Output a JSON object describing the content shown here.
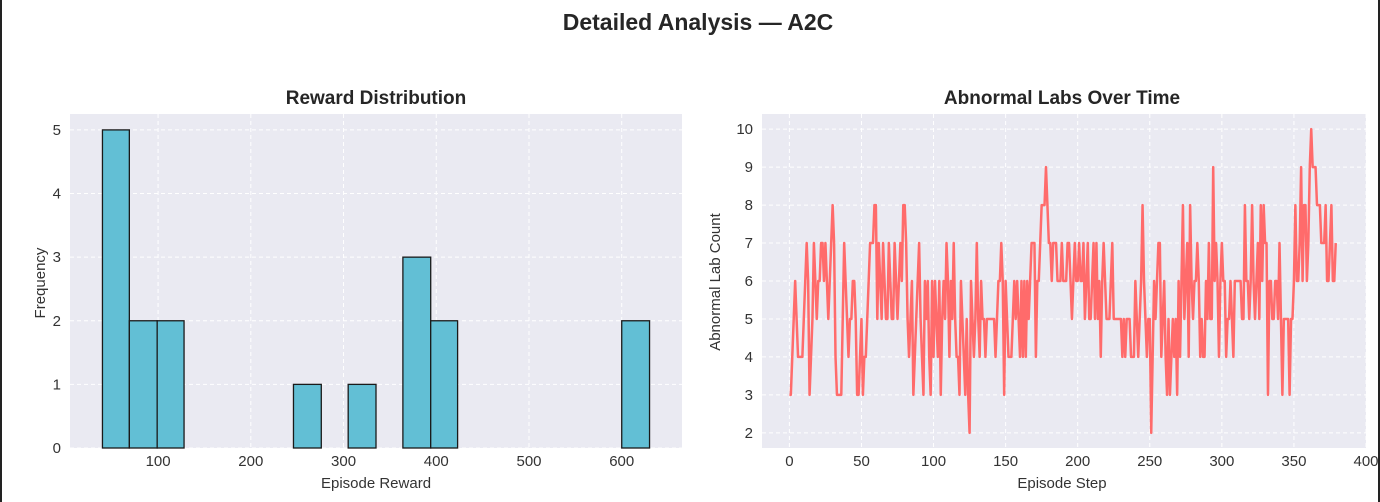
{
  "figure": {
    "title": "Detailed Analysis — A2C"
  },
  "colors": {
    "panel_background": "#eaeaf2",
    "grid": "#ffffff",
    "histogram_fill": "#62bfd5",
    "histogram_edge": "#1a1a1a",
    "line": "#ff6b6b"
  },
  "chart_data": [
    {
      "type": "bar",
      "subtype": "histogram",
      "title": "Reward Distribution",
      "xlabel": "Episode Reward",
      "ylabel": "Frequency",
      "xlim": [
        5,
        665
      ],
      "ylim": [
        0,
        5.25
      ],
      "xticks": [
        100,
        200,
        300,
        400,
        500,
        600
      ],
      "yticks": [
        0,
        1,
        2,
        3,
        4,
        5
      ],
      "grid": true,
      "bins": [
        {
          "x0": 40,
          "x1": 69,
          "count": 5
        },
        {
          "x0": 69,
          "x1": 99,
          "count": 2
        },
        {
          "x0": 99,
          "x1": 128,
          "count": 2
        },
        {
          "x0": 128,
          "x1": 158,
          "count": 0
        },
        {
          "x0": 158,
          "x1": 187,
          "count": 0
        },
        {
          "x0": 187,
          "x1": 217,
          "count": 0
        },
        {
          "x0": 217,
          "x1": 246,
          "count": 0
        },
        {
          "x0": 246,
          "x1": 276,
          "count": 1
        },
        {
          "x0": 276,
          "x1": 305,
          "count": 0
        },
        {
          "x0": 305,
          "x1": 335,
          "count": 1
        },
        {
          "x0": 335,
          "x1": 364,
          "count": 0
        },
        {
          "x0": 364,
          "x1": 394,
          "count": 3
        },
        {
          "x0": 394,
          "x1": 423,
          "count": 2
        },
        {
          "x0": 423,
          "x1": 453,
          "count": 0
        },
        {
          "x0": 453,
          "x1": 482,
          "count": 0
        },
        {
          "x0": 482,
          "x1": 512,
          "count": 0
        },
        {
          "x0": 512,
          "x1": 541,
          "count": 0
        },
        {
          "x0": 541,
          "x1": 571,
          "count": 0
        },
        {
          "x0": 571,
          "x1": 600,
          "count": 0
        },
        {
          "x0": 600,
          "x1": 630,
          "count": 2
        }
      ]
    },
    {
      "type": "line",
      "title": "Abnormal Labs Over Time",
      "xlabel": "Episode Step",
      "ylabel": "Abnormal Lab Count",
      "xlim": [
        -19,
        400
      ],
      "ylim": [
        1.6,
        10.4
      ],
      "xticks": [
        0,
        50,
        100,
        150,
        200,
        250,
        300,
        350,
        400
      ],
      "yticks": [
        2,
        3,
        4,
        5,
        6,
        7,
        8,
        9,
        10
      ],
      "grid": true,
      "series": [
        {
          "values": [
            3,
            3,
            4,
            5,
            6,
            5,
            4,
            4,
            4,
            4,
            5,
            6,
            7,
            6,
            3,
            4,
            5,
            7,
            6,
            5,
            6,
            6,
            7,
            7,
            6,
            7,
            6,
            5,
            6,
            7,
            8,
            7,
            4,
            3,
            3,
            3,
            3,
            5,
            7,
            6,
            5,
            4,
            5,
            5,
            6,
            6,
            5,
            3,
            3,
            4,
            5,
            3,
            4,
            4,
            5,
            6,
            7,
            7,
            7,
            8,
            8,
            5,
            7,
            6,
            5,
            7,
            6,
            5,
            5,
            7,
            6,
            5,
            5,
            7,
            6,
            5,
            6,
            7,
            6,
            8,
            8,
            7,
            5,
            4,
            5,
            6,
            3,
            4,
            5,
            6,
            7,
            5,
            4,
            3,
            6,
            5,
            6,
            4,
            3,
            6,
            4,
            6,
            5,
            4,
            6,
            3,
            5,
            6,
            5,
            7,
            6,
            4,
            6,
            5,
            7,
            5,
            4,
            4,
            3,
            6,
            5,
            4,
            3,
            5,
            3,
            2,
            6,
            5,
            4,
            5,
            7,
            5,
            4,
            6,
            5,
            5,
            4,
            5,
            5,
            5,
            5,
            5,
            5,
            4,
            5,
            6,
            6,
            7,
            6,
            3,
            6,
            5,
            4,
            4,
            4,
            5,
            6,
            5,
            6,
            5,
            4,
            6,
            4,
            6,
            4,
            6,
            5,
            6,
            7,
            7,
            7,
            4,
            6,
            6,
            7,
            8,
            8,
            8,
            9,
            8,
            7,
            7,
            6,
            7,
            7,
            7,
            6,
            6,
            6,
            7,
            6,
            6,
            6,
            7,
            7,
            6,
            5,
            6,
            7,
            6,
            6,
            7,
            6,
            6,
            7,
            5,
            6,
            7,
            5,
            5,
            6,
            7,
            5,
            7,
            5,
            6,
            4,
            6,
            7,
            6,
            5,
            5,
            5,
            6,
            7,
            5,
            5,
            5,
            5,
            5,
            5,
            4,
            5,
            4,
            5,
            5,
            5,
            4,
            4,
            4,
            6,
            5,
            4,
            5,
            6,
            8,
            6,
            5,
            4,
            5,
            5,
            2,
            4,
            6,
            5,
            6,
            7,
            7,
            4,
            5,
            6,
            4,
            3,
            5,
            3,
            4,
            5,
            4,
            5,
            3,
            6,
            4,
            6,
            8,
            5,
            6,
            7,
            4,
            8,
            6,
            5,
            6,
            6,
            7,
            6,
            4,
            5,
            4,
            4,
            6,
            5,
            7,
            5,
            5,
            9,
            6,
            7,
            6,
            4,
            6,
            7,
            6,
            6,
            4,
            5,
            5,
            6,
            5,
            4,
            6,
            6,
            6,
            6,
            6,
            5,
            5,
            8,
            6,
            6,
            5,
            6,
            8,
            6,
            5,
            6,
            7,
            5,
            8,
            6,
            8,
            7,
            7,
            3,
            6,
            6,
            5,
            5,
            6,
            6,
            5,
            7,
            5,
            3,
            5,
            5,
            5,
            5,
            3,
            5,
            5,
            6,
            8,
            6,
            6,
            7,
            9,
            6,
            8,
            8,
            6,
            7,
            9,
            10,
            9,
            9,
            9,
            8,
            8,
            8,
            7,
            7,
            7,
            8,
            6,
            6,
            7,
            8,
            6,
            6,
            7
          ]
        }
      ]
    }
  ]
}
